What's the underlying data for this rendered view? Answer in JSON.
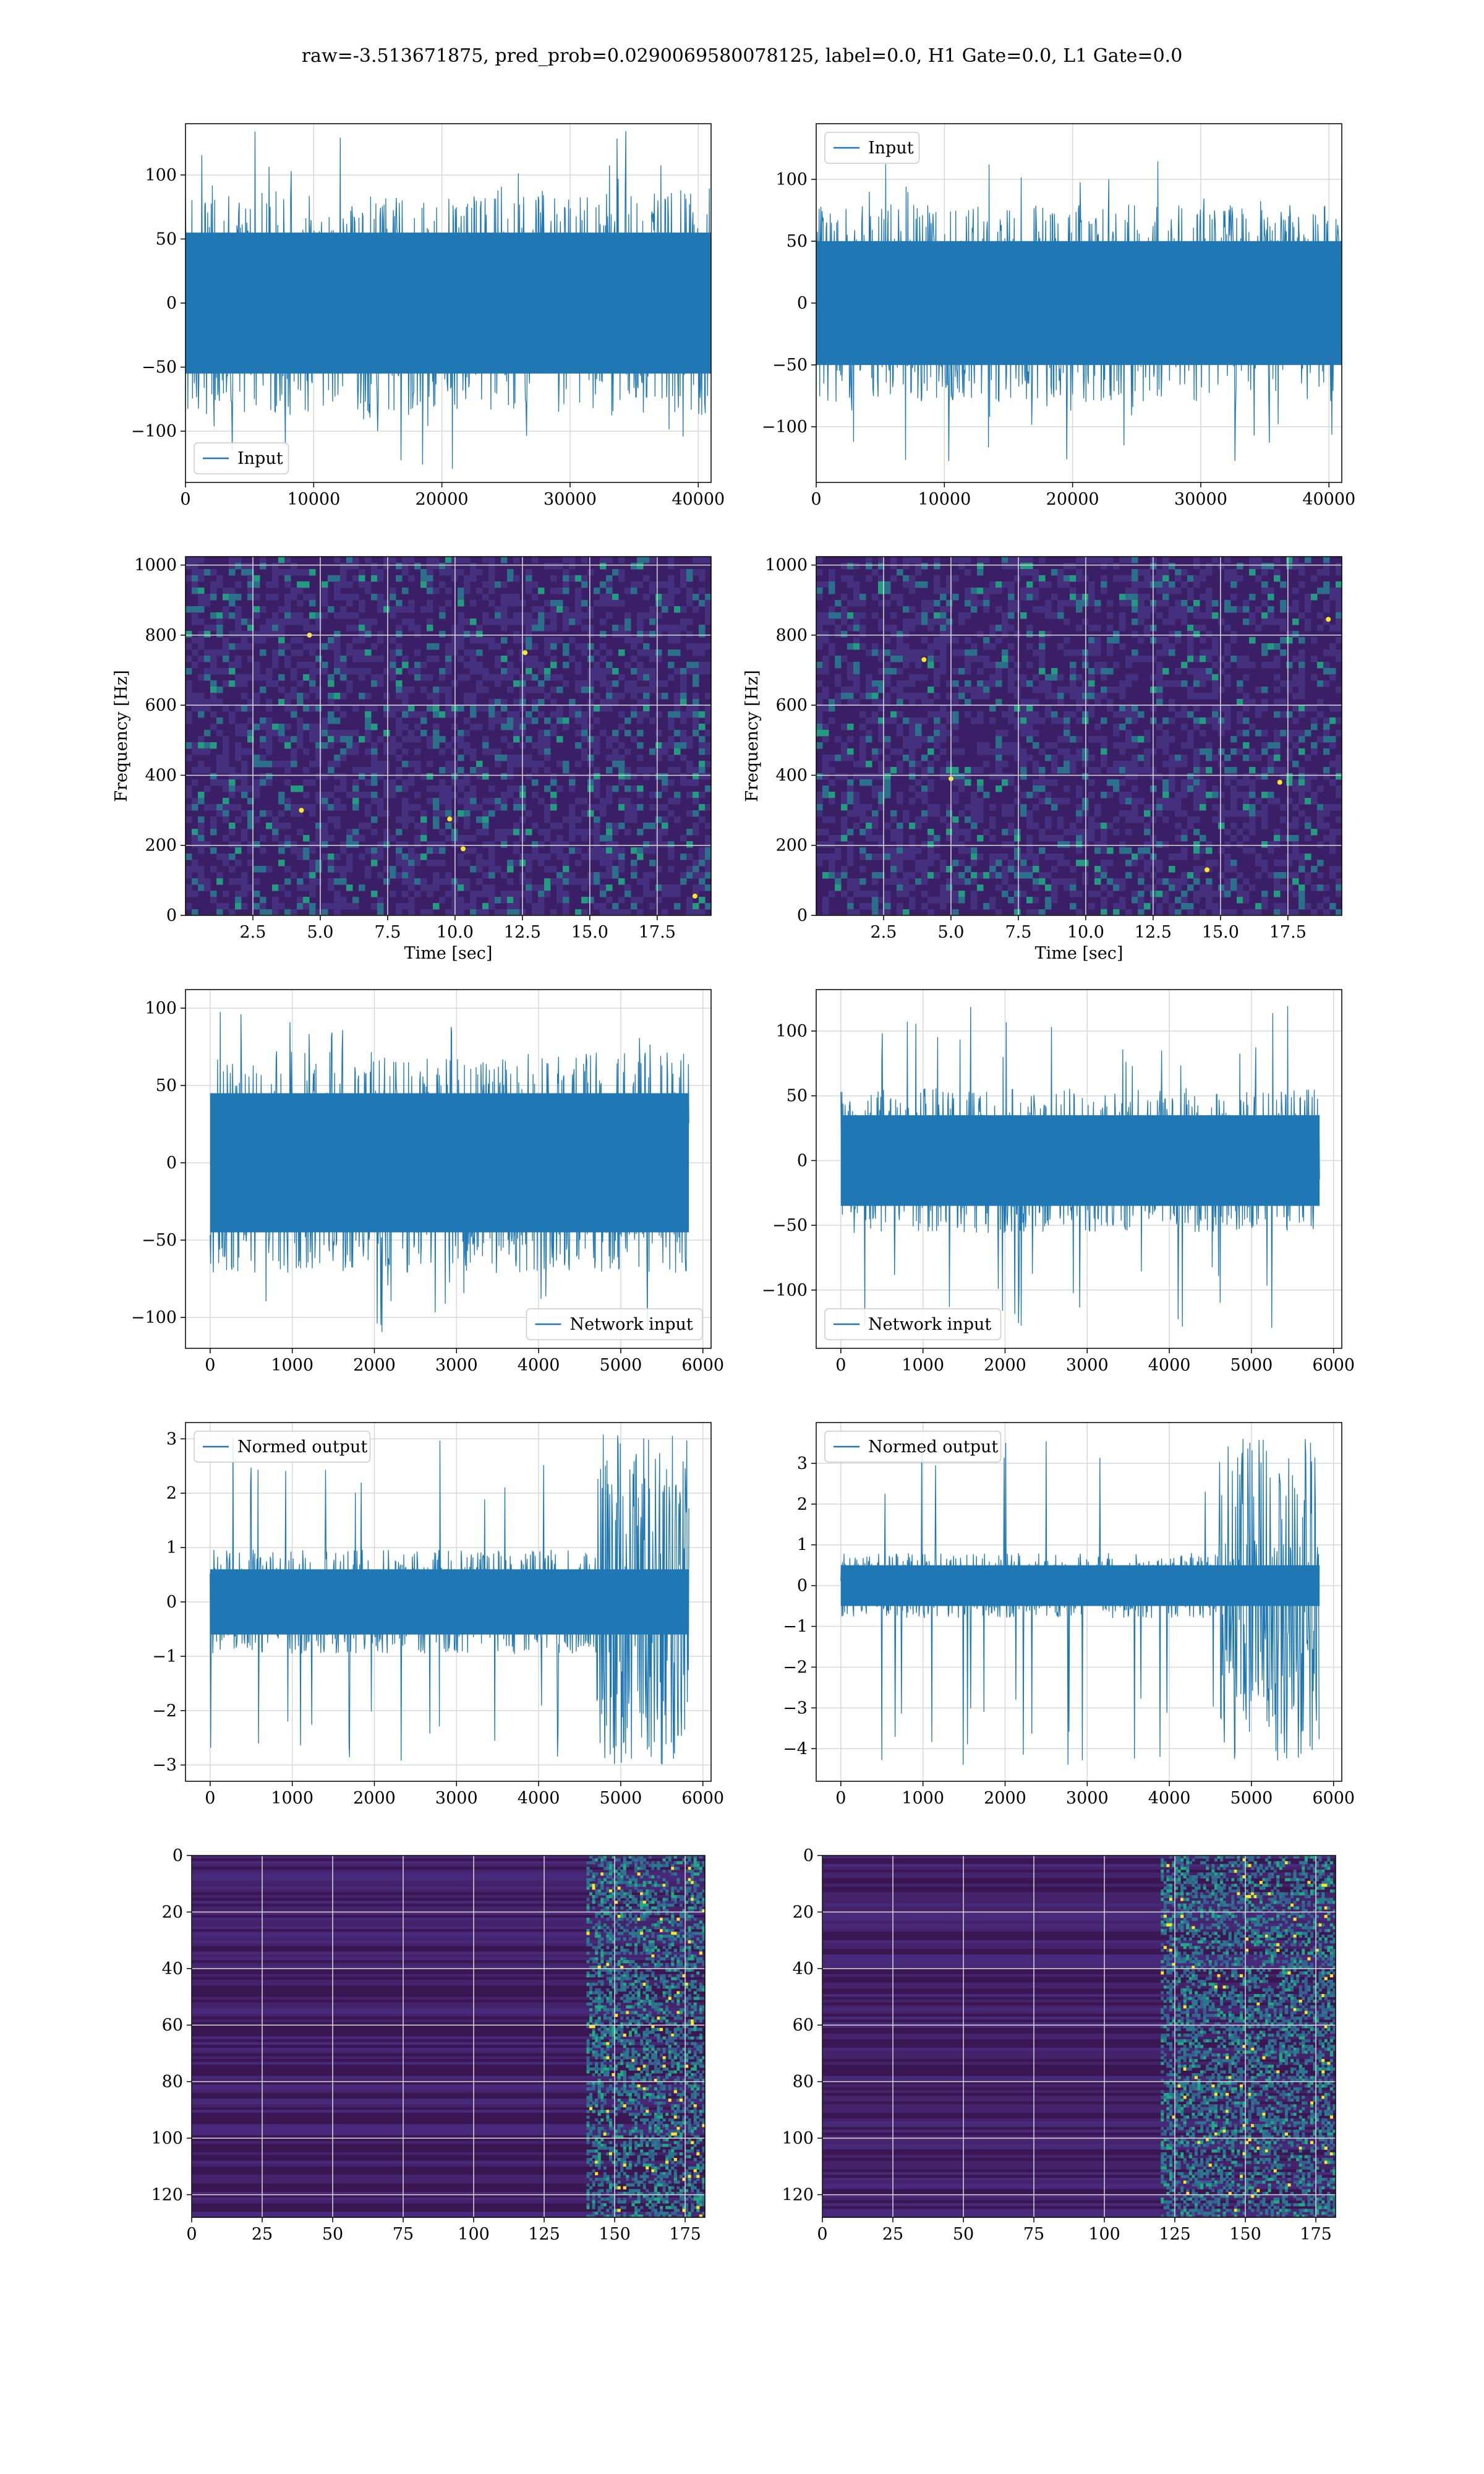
{
  "figure": {
    "suptitle": "raw=-3.513671875, pred_prob=0.0290069580078125, label=0.0, H1 Gate=0.0, L1 Gate=0.0"
  },
  "colors": {
    "series": "#1f77b4",
    "grid": "#d9d9d9",
    "spec_bg": "#3b1f66",
    "spec_lo": "#46327e",
    "spec_mid": "#2a788e",
    "spec_hi": "#22a884",
    "spec_peak": "#fde725"
  },
  "chart_data": [
    {
      "id": "raw-left",
      "type": "line",
      "legend": [
        "Input"
      ],
      "legend_loc": "lower left",
      "xlim": [
        0,
        41000
      ],
      "ylim": [
        -140,
        140
      ],
      "xticks": [
        0,
        10000,
        20000,
        30000,
        40000
      ],
      "yticks": [
        -100,
        -50,
        0,
        50,
        100
      ],
      "series": [
        {
          "name": "Input",
          "x_range": [
            0,
            41000
          ],
          "band": [
            -55,
            55
          ],
          "spike": [
            -130,
            135
          ]
        }
      ],
      "xlabel": "",
      "ylabel": "",
      "grid": true
    },
    {
      "id": "raw-right",
      "type": "line",
      "legend": [
        "Input"
      ],
      "legend_loc": "upper left",
      "xlim": [
        0,
        41000
      ],
      "ylim": [
        -145,
        145
      ],
      "xticks": [
        0,
        10000,
        20000,
        30000,
        40000
      ],
      "yticks": [
        -100,
        -50,
        0,
        50,
        100
      ],
      "series": [
        {
          "name": "Input",
          "x_range": [
            0,
            41000
          ],
          "band": [
            -50,
            50
          ],
          "spike": [
            -130,
            120
          ]
        }
      ],
      "xlabel": "",
      "ylabel": "",
      "grid": true
    },
    {
      "id": "spec-left",
      "type": "heatmap",
      "xlim": [
        0,
        19.5
      ],
      "ylim": [
        0,
        1024
      ],
      "xticks": [
        2.5,
        5.0,
        7.5,
        10.0,
        12.5,
        15.0,
        17.5
      ],
      "yticks": [
        0,
        200,
        400,
        600,
        800,
        1000
      ],
      "xlabel": "Time [sec]",
      "ylabel": "Frequency [Hz]",
      "grid": true,
      "hotspots": [
        [
          4.6,
          800
        ],
        [
          9.8,
          275
        ],
        [
          10.3,
          190
        ],
        [
          4.3,
          300
        ],
        [
          18.9,
          55
        ],
        [
          12.6,
          750
        ]
      ]
    },
    {
      "id": "spec-right",
      "type": "heatmap",
      "xlim": [
        0,
        19.5
      ],
      "ylim": [
        0,
        1024
      ],
      "xticks": [
        2.5,
        5.0,
        7.5,
        10.0,
        12.5,
        15.0,
        17.5
      ],
      "yticks": [
        0,
        200,
        400,
        600,
        800,
        1000
      ],
      "xlabel": "Time [sec]",
      "ylabel": "Frequency [Hz]",
      "grid": true,
      "hotspots": [
        [
          4.0,
          730
        ],
        [
          5.0,
          390
        ],
        [
          17.2,
          380
        ],
        [
          14.5,
          130
        ],
        [
          19.0,
          845
        ]
      ]
    },
    {
      "id": "net-left",
      "type": "line",
      "legend": [
        "Network input"
      ],
      "legend_loc": "lower right",
      "xlim": [
        -300,
        6100
      ],
      "ylim": [
        -120,
        112
      ],
      "xticks": [
        0,
        1000,
        2000,
        3000,
        4000,
        5000,
        6000
      ],
      "yticks": [
        -100,
        -50,
        0,
        50,
        100
      ],
      "series": [
        {
          "name": "Network input",
          "x_range": [
            0,
            5830
          ],
          "band": [
            -45,
            45
          ],
          "spike": [
            -110,
            100
          ]
        }
      ],
      "xlabel": "",
      "ylabel": "",
      "grid": true
    },
    {
      "id": "net-right",
      "type": "line",
      "legend": [
        "Network input"
      ],
      "legend_loc": "lower left",
      "xlim": [
        -300,
        6100
      ],
      "ylim": [
        -145,
        132
      ],
      "xticks": [
        0,
        1000,
        2000,
        3000,
        4000,
        5000,
        6000
      ],
      "yticks": [
        -100,
        -50,
        0,
        50,
        100
      ],
      "series": [
        {
          "name": "Network input",
          "x_range": [
            0,
            5830
          ],
          "band": [
            -35,
            35
          ],
          "spike": [
            -130,
            120
          ]
        }
      ],
      "xlabel": "",
      "ylabel": "",
      "grid": true
    },
    {
      "id": "norm-left",
      "type": "line",
      "legend": [
        "Normed output"
      ],
      "legend_loc": "upper left",
      "xlim": [
        -300,
        6100
      ],
      "ylim": [
        -3.3,
        3.3
      ],
      "xticks": [
        0,
        1000,
        2000,
        3000,
        4000,
        5000,
        6000
      ],
      "yticks": [
        -3,
        -2,
        -1,
        0,
        1,
        2,
        3
      ],
      "series": [
        {
          "name": "Normed output",
          "x_range": [
            0,
            5830
          ],
          "band": [
            -0.6,
            0.6
          ],
          "spike": [
            -3.0,
            3.1
          ],
          "burst_from": 4700
        }
      ],
      "xlabel": "",
      "ylabel": "",
      "grid": true
    },
    {
      "id": "norm-right",
      "type": "line",
      "legend": [
        "Normed output"
      ],
      "legend_loc": "upper left",
      "xlim": [
        -300,
        6100
      ],
      "ylim": [
        -4.8,
        4.0
      ],
      "xticks": [
        0,
        1000,
        2000,
        3000,
        4000,
        5000,
        6000
      ],
      "yticks": [
        -4,
        -3,
        -2,
        -1,
        0,
        1,
        2,
        3
      ],
      "series": [
        {
          "name": "Normed output",
          "x_range": [
            0,
            5830
          ],
          "band": [
            -0.5,
            0.5
          ],
          "spike": [
            -4.4,
            3.6
          ],
          "burst_from": 4600
        }
      ],
      "xlabel": "",
      "ylabel": "",
      "grid": true
    },
    {
      "id": "feat-left",
      "type": "heatmap",
      "xlim": [
        0,
        182
      ],
      "ylim": [
        128,
        0
      ],
      "xticks": [
        0,
        25,
        50,
        75,
        100,
        125,
        150,
        175
      ],
      "yticks": [
        0,
        20,
        40,
        60,
        80,
        100,
        120
      ],
      "xlabel": "",
      "ylabel": "",
      "grid": true,
      "active_from": 140
    },
    {
      "id": "feat-right",
      "type": "heatmap",
      "xlim": [
        0,
        182
      ],
      "ylim": [
        128,
        0
      ],
      "xticks": [
        0,
        25,
        50,
        75,
        100,
        125,
        150,
        175
      ],
      "yticks": [
        0,
        20,
        40,
        60,
        80,
        100,
        120
      ],
      "xlabel": "",
      "ylabel": "",
      "grid": true,
      "active_from": 120
    }
  ]
}
